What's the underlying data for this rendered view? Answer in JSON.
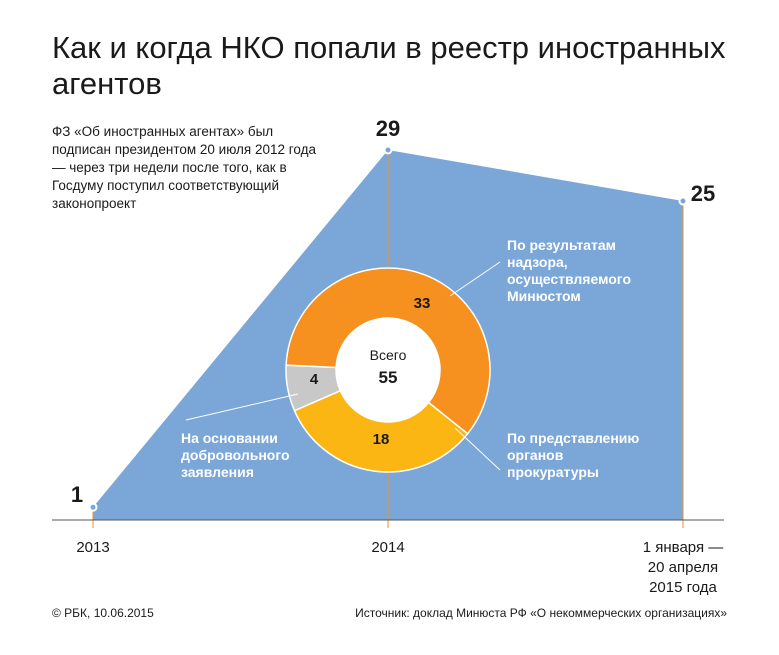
{
  "title": "Как и когда НКО попали в реестр иностранных агентов",
  "note": "ФЗ «Об иностранных агентах» был подписан президентом 20 июля 2012 года — через три недели после того, как в Госдуму поступил соответствующий законопроект",
  "footer": {
    "copyright": "© РБК, 10.06.2015",
    "source_label": "Источник:",
    "source_text": "доклад Минюста РФ «О некоммерческих организациях»"
  },
  "colors": {
    "area": "#7aa6d8",
    "orange": "#f6901e",
    "yellow": "#fcb614",
    "gray": "#c8c8c8",
    "vline": "#f6901e"
  },
  "chart_data": [
    {
      "type": "area",
      "categories": [
        "2013",
        "2014",
        "1 января — 20 апреля 2015 года"
      ],
      "values": [
        1,
        29,
        25
      ],
      "ylim": [
        0,
        29
      ]
    },
    {
      "type": "pie",
      "center_label": "Всего",
      "total": 55,
      "slices": [
        {
          "label": "По результатам надзора, осуществляемого Минюстом",
          "value": 33,
          "color": "#f6901e"
        },
        {
          "label": "По представлению органов прокуратуры",
          "value": 18,
          "color": "#fcb614"
        },
        {
          "label": "На основании добровольного заявления",
          "value": 4,
          "color": "#c8c8c8"
        }
      ]
    }
  ]
}
